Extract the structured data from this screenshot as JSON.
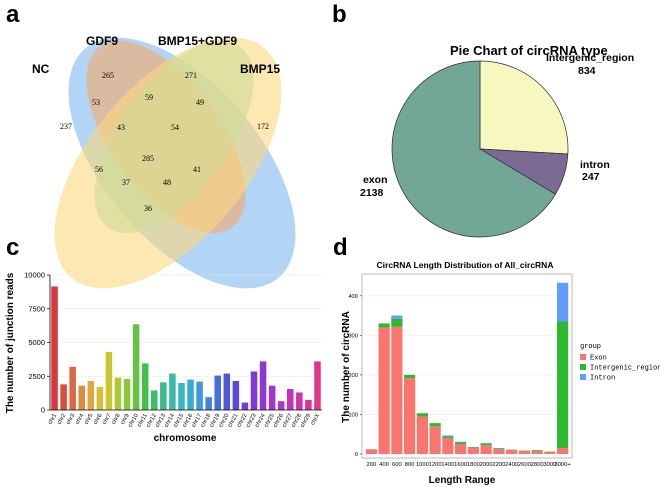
{
  "panels": {
    "a": "a",
    "b": "b",
    "c": "c",
    "d": "d"
  },
  "chart_data": [
    {
      "type": "venn",
      "sets": [
        "NC",
        "GDF9",
        "BMP15+GDF9",
        "BMP15"
      ],
      "colors": [
        "#7fb7ee",
        "#f6a96b",
        "#8ee0b5",
        "#fbd97e"
      ],
      "regions": {
        "nc_only": "237",
        "gdf9_only": "265",
        "bg_only": "271",
        "bmp15_only": "172",
        "nc_gdf9": "53",
        "gdf9_bg": "59",
        "bg_bmp15": "49",
        "nc_gdf9_bg": "43",
        "gdf9_bg_bmp15": "54",
        "all": "285",
        "nc_bg": "56",
        "gdf9_bmp15": "41",
        "nc_bg_bmp15": "37",
        "nc_gdf9_bmp15": "48",
        "nc_bmp15": "36"
      }
    },
    {
      "type": "pie",
      "title": "Pie Chart of circRNA type",
      "slices": [
        {
          "name": "Intergenic_region",
          "value": 834,
          "color": "#f7f7c0"
        },
        {
          "name": "intron",
          "value": 247,
          "color": "#7b6a93"
        },
        {
          "name": "exon",
          "value": 2138,
          "color": "#72a696"
        }
      ],
      "labels": {
        "intergenic_name": "Intergenic_region",
        "intergenic_value": "834",
        "intron_name": "intron",
        "intron_value": "247",
        "exon_name": "exon",
        "exon_value": "2138"
      }
    },
    {
      "type": "bar",
      "xlabel": "chromosome",
      "ylabel": "The number of junction reads",
      "ylim": [
        0,
        10000
      ],
      "yticks": [
        "0",
        "2500",
        "5000",
        "7500",
        "10000"
      ],
      "categories": [
        "chr1",
        "chr2",
        "chr3",
        "chr4",
        "chr5",
        "chr6",
        "chr7",
        "chr8",
        "chr9",
        "chr10",
        "chr11",
        "chr12",
        "chr13",
        "chr14",
        "chr15",
        "chr16",
        "chr17",
        "chr18",
        "chr19",
        "chr20",
        "chr21",
        "chr22",
        "chr23",
        "chr24",
        "chr25",
        "chr26",
        "chr27",
        "chr28",
        "chr29",
        "chrX"
      ],
      "values": [
        9150,
        1900,
        3200,
        1800,
        2150,
        1700,
        4300,
        2400,
        2300,
        6350,
        3450,
        1450,
        2050,
        2700,
        2000,
        2250,
        2100,
        950,
        2550,
        2700,
        2150,
        550,
        2850,
        3600,
        1800,
        650,
        1550,
        1300,
        750,
        3600
      ],
      "colors": [
        "#d7373d",
        "#d94d3d",
        "#dc6a3f",
        "#de8a3f",
        "#e0a73f",
        "#d9bb35",
        "#c9c62f",
        "#aac934",
        "#8ac63a",
        "#65c242",
        "#44bf4e",
        "#3cbd6d",
        "#3bbb8b",
        "#3ab9a6",
        "#38b6bf",
        "#36aed3",
        "#3a9bd8",
        "#3f86da",
        "#456fdc",
        "#4d59db",
        "#5a47d8",
        "#6a3fd6",
        "#7d3ad4",
        "#8f37d1",
        "#a235cd",
        "#b333c5",
        "#c331ba",
        "#cf32ab",
        "#d9349c",
        "#e0378c"
      ]
    },
    {
      "type": "bar",
      "stacked": true,
      "title": "CircRNA Length Distribution of All_circRNA",
      "xlabel": "Length Range",
      "ylabel": "The number of circRNA",
      "ylim": [
        0,
        450
      ],
      "yticks": [
        "0",
        "100",
        "200",
        "300",
        "400"
      ],
      "categories": [
        "200",
        "400",
        "600",
        "800",
        "1000",
        "1200",
        "1400",
        "1600",
        "1800",
        "2000",
        "2200",
        "2400",
        "2600",
        "2800",
        "3000",
        "3000+"
      ],
      "legend_title": "group",
      "series": [
        {
          "name": "Exon",
          "color": "#f8766d",
          "values": [
            12,
            320,
            322,
            192,
            95,
            70,
            40,
            25,
            15,
            22,
            12,
            10,
            8,
            8,
            5,
            15
          ]
        },
        {
          "name": "Intergenic_region",
          "color": "#2db92d",
          "values": [
            0,
            10,
            20,
            8,
            8,
            8,
            4,
            4,
            2,
            4,
            2,
            1,
            1,
            2,
            1,
            320
          ]
        },
        {
          "name": "Intron",
          "color": "#619cff",
          "values": [
            0,
            0,
            8,
            0,
            0,
            0,
            3,
            2,
            1,
            2,
            1,
            0,
            0,
            0,
            0,
            98
          ]
        }
      ]
    }
  ]
}
